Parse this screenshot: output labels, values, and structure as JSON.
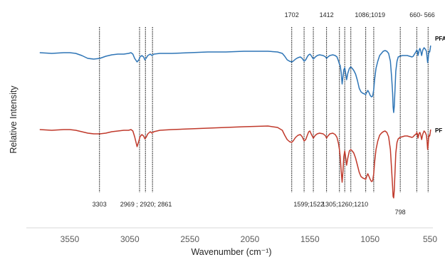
{
  "chart_data": {
    "type": "line",
    "title": "",
    "xlabel": "Wavenumber (cm⁻¹)",
    "ylabel": "Relative Intensity",
    "x_reversed": true,
    "xlim": [
      3800,
      540
    ],
    "x_ticks": [
      "3550",
      "3050",
      "2550",
      "2050",
      "1550",
      "1050",
      "550"
    ],
    "grid": false,
    "series": [
      {
        "name": "PFA",
        "color": "#2e75b6",
        "points": [
          [
            3800,
            74
          ],
          [
            3700,
            75
          ],
          [
            3600,
            74
          ],
          [
            3550,
            74
          ],
          [
            3500,
            75
          ],
          [
            3450,
            78
          ],
          [
            3400,
            82
          ],
          [
            3350,
            83
          ],
          [
            3300,
            82
          ],
          [
            3250,
            79
          ],
          [
            3200,
            77
          ],
          [
            3150,
            76
          ],
          [
            3100,
            76
          ],
          [
            3060,
            75
          ],
          [
            3040,
            74
          ],
          [
            3025,
            76
          ],
          [
            3010,
            82
          ],
          [
            2990,
            87
          ],
          [
            2975,
            84
          ],
          [
            2965,
            80
          ],
          [
            2950,
            78
          ],
          [
            2935,
            80
          ],
          [
            2925,
            84
          ],
          [
            2915,
            82
          ],
          [
            2900,
            78
          ],
          [
            2880,
            76
          ],
          [
            2865,
            78
          ],
          [
            2850,
            76
          ],
          [
            2800,
            75
          ],
          [
            2700,
            75
          ],
          [
            2550,
            74
          ],
          [
            2400,
            73
          ],
          [
            2250,
            73
          ],
          [
            2100,
            72
          ],
          [
            1900,
            72
          ],
          [
            1820,
            73
          ],
          [
            1780,
            75
          ],
          [
            1760,
            79
          ],
          [
            1740,
            84
          ],
          [
            1720,
            86
          ],
          [
            1702,
            87
          ],
          [
            1690,
            86
          ],
          [
            1670,
            83
          ],
          [
            1650,
            81
          ],
          [
            1630,
            80
          ],
          [
            1615,
            82
          ],
          [
            1599,
            86
          ],
          [
            1585,
            84
          ],
          [
            1570,
            79
          ],
          [
            1560,
            77
          ],
          [
            1550,
            76
          ],
          [
            1540,
            78
          ],
          [
            1522,
            83
          ],
          [
            1505,
            80
          ],
          [
            1490,
            78
          ],
          [
            1470,
            77
          ],
          [
            1440,
            78
          ],
          [
            1420,
            80
          ],
          [
            1412,
            82
          ],
          [
            1400,
            80
          ],
          [
            1385,
            78
          ],
          [
            1360,
            77
          ],
          [
            1340,
            78
          ],
          [
            1325,
            80
          ],
          [
            1312,
            86
          ],
          [
            1305,
            90
          ],
          [
            1298,
            92
          ],
          [
            1290,
            102
          ],
          [
            1282,
            118
          ],
          [
            1275,
            108
          ],
          [
            1268,
            98
          ],
          [
            1260,
            95
          ],
          [
            1252,
            104
          ],
          [
            1245,
            112
          ],
          [
            1235,
            103
          ],
          [
            1222,
            96
          ],
          [
            1210,
            94
          ],
          [
            1198,
            96
          ],
          [
            1185,
            99
          ],
          [
            1170,
            104
          ],
          [
            1155,
            113
          ],
          [
            1140,
            124
          ],
          [
            1125,
            129
          ],
          [
            1110,
            131
          ],
          [
            1095,
            132
          ],
          [
            1086,
            133
          ],
          [
            1078,
            130
          ],
          [
            1068,
            127
          ],
          [
            1058,
            130
          ],
          [
            1048,
            134
          ],
          [
            1038,
            136
          ],
          [
            1028,
            135
          ],
          [
            1019,
            126
          ],
          [
            1012,
            112
          ],
          [
            1000,
            96
          ],
          [
            985,
            86
          ],
          [
            970,
            78
          ],
          [
            955,
            75
          ],
          [
            940,
            72
          ],
          [
            925,
            71
          ],
          [
            910,
            72
          ],
          [
            895,
            75
          ],
          [
            880,
            86
          ],
          [
            870,
            108
          ],
          [
            862,
            130
          ],
          [
            858,
            150
          ],
          [
            853,
            158
          ],
          [
            848,
            150
          ],
          [
            842,
            128
          ],
          [
            835,
            100
          ],
          [
            825,
            86
          ],
          [
            815,
            80
          ],
          [
            800,
            79
          ],
          [
            780,
            78
          ],
          [
            760,
            78
          ],
          [
            740,
            78
          ],
          [
            720,
            79
          ],
          [
            700,
            80
          ],
          [
            690,
            79
          ],
          [
            680,
            76
          ],
          [
            672,
            74
          ],
          [
            665,
            72
          ],
          [
            660,
            70
          ],
          [
            655,
            72
          ],
          [
            650,
            78
          ],
          [
            645,
            74
          ],
          [
            640,
            70
          ],
          [
            635,
            68
          ],
          [
            630,
            70
          ],
          [
            625,
            74
          ],
          [
            620,
            78
          ],
          [
            615,
            74
          ],
          [
            610,
            70
          ],
          [
            600,
            67
          ],
          [
            590,
            69
          ],
          [
            580,
            72
          ],
          [
            575,
            80
          ],
          [
            570,
            88
          ],
          [
            566,
            84
          ],
          [
            562,
            76
          ],
          [
            558,
            72
          ],
          [
            553,
            73
          ],
          [
            548,
            68
          ],
          [
            545,
            64
          ]
        ]
      },
      {
        "name": "PF",
        "color": "#c0392b",
        "points": [
          [
            3800,
            182
          ],
          [
            3700,
            183
          ],
          [
            3600,
            182
          ],
          [
            3550,
            182
          ],
          [
            3500,
            183
          ],
          [
            3450,
            185
          ],
          [
            3400,
            187
          ],
          [
            3350,
            188
          ],
          [
            3300,
            188
          ],
          [
            3250,
            187
          ],
          [
            3200,
            185
          ],
          [
            3150,
            184
          ],
          [
            3100,
            183
          ],
          [
            3060,
            183
          ],
          [
            3040,
            182
          ],
          [
            3025,
            184
          ],
          [
            3010,
            192
          ],
          [
            2990,
            206
          ],
          [
            2975,
            198
          ],
          [
            2965,
            192
          ],
          [
            2950,
            189
          ],
          [
            2935,
            191
          ],
          [
            2925,
            195
          ],
          [
            2915,
            193
          ],
          [
            2900,
            188
          ],
          [
            2880,
            185
          ],
          [
            2865,
            187
          ],
          [
            2850,
            185
          ],
          [
            2800,
            183
          ],
          [
            2700,
            182
          ],
          [
            2550,
            181
          ],
          [
            2400,
            180
          ],
          [
            2250,
            179
          ],
          [
            2100,
            178
          ],
          [
            1900,
            177
          ],
          [
            1820,
            179
          ],
          [
            1780,
            183
          ],
          [
            1760,
            190
          ],
          [
            1740,
            196
          ],
          [
            1720,
            199
          ],
          [
            1702,
            200
          ],
          [
            1690,
            198
          ],
          [
            1670,
            193
          ],
          [
            1650,
            190
          ],
          [
            1630,
            189
          ],
          [
            1615,
            192
          ],
          [
            1599,
            198
          ],
          [
            1585,
            196
          ],
          [
            1570,
            189
          ],
          [
            1560,
            185
          ],
          [
            1550,
            184
          ],
          [
            1540,
            188
          ],
          [
            1522,
            194
          ],
          [
            1505,
            190
          ],
          [
            1490,
            188
          ],
          [
            1470,
            187
          ],
          [
            1440,
            188
          ],
          [
            1420,
            191
          ],
          [
            1412,
            194
          ],
          [
            1400,
            191
          ],
          [
            1385,
            188
          ],
          [
            1360,
            187
          ],
          [
            1340,
            189
          ],
          [
            1325,
            193
          ],
          [
            1312,
            202
          ],
          [
            1305,
            210
          ],
          [
            1298,
            220
          ],
          [
            1290,
            240
          ],
          [
            1282,
            256
          ],
          [
            1275,
            240
          ],
          [
            1268,
            220
          ],
          [
            1260,
            212
          ],
          [
            1252,
            222
          ],
          [
            1245,
            232
          ],
          [
            1235,
            222
          ],
          [
            1222,
            212
          ],
          [
            1210,
            210
          ],
          [
            1198,
            212
          ],
          [
            1185,
            215
          ],
          [
            1170,
            222
          ],
          [
            1155,
            232
          ],
          [
            1140,
            242
          ],
          [
            1125,
            248
          ],
          [
            1110,
            250
          ],
          [
            1095,
            251
          ],
          [
            1086,
            252
          ],
          [
            1078,
            248
          ],
          [
            1068,
            244
          ],
          [
            1058,
            248
          ],
          [
            1048,
            252
          ],
          [
            1038,
            255
          ],
          [
            1028,
            254
          ],
          [
            1019,
            244
          ],
          [
            1012,
            228
          ],
          [
            1000,
            210
          ],
          [
            985,
            198
          ],
          [
            970,
            190
          ],
          [
            955,
            187
          ],
          [
            940,
            185
          ],
          [
            925,
            184
          ],
          [
            910,
            186
          ],
          [
            895,
            192
          ],
          [
            880,
            210
          ],
          [
            870,
            238
          ],
          [
            862,
            262
          ],
          [
            858,
            276
          ],
          [
            853,
            278
          ],
          [
            848,
            268
          ],
          [
            842,
            244
          ],
          [
            835,
            215
          ],
          [
            825,
            200
          ],
          [
            815,
            195
          ],
          [
            800,
            193
          ],
          [
            780,
            192
          ],
          [
            760,
            191
          ],
          [
            740,
            191
          ],
          [
            720,
            192
          ],
          [
            700,
            193
          ],
          [
            690,
            192
          ],
          [
            680,
            190
          ],
          [
            672,
            189
          ],
          [
            665,
            188
          ],
          [
            660,
            186
          ],
          [
            655,
            188
          ],
          [
            650,
            194
          ],
          [
            645,
            190
          ],
          [
            640,
            187
          ],
          [
            635,
            186
          ],
          [
            630,
            188
          ],
          [
            625,
            192
          ],
          [
            620,
            196
          ],
          [
            615,
            192
          ],
          [
            610,
            188
          ],
          [
            600,
            184
          ],
          [
            590,
            186
          ],
          [
            580,
            190
          ],
          [
            575,
            198
          ],
          [
            570,
            210
          ],
          [
            566,
            204
          ],
          [
            562,
            194
          ],
          [
            558,
            190
          ],
          [
            553,
            191
          ],
          [
            548,
            186
          ],
          [
            545,
            182
          ]
        ]
      }
    ],
    "reference_lines": [
      3303,
      2969,
      2920,
      2861,
      1702,
      1599,
      1522,
      1412,
      1305,
      1260,
      1210,
      1086,
      1019,
      798,
      660,
      566
    ],
    "annotations": [
      {
        "text": "1702",
        "x": 1702,
        "pos": "top"
      },
      {
        "text": "1412",
        "x": 1412,
        "pos": "top"
      },
      {
        "text": "1086;1019",
        "x": 1050,
        "pos": "top"
      },
      {
        "text": "660- 566",
        "x": 615,
        "pos": "top"
      },
      {
        "text": "3303",
        "x": 3303,
        "pos": "bottom"
      },
      {
        "text": "2969 ; 2920; 2861",
        "x": 2915,
        "pos": "bottom"
      },
      {
        "text": "1599;1522",
        "x": 1560,
        "pos": "bottom"
      },
      {
        "text": "1305;1260;1210",
        "x": 1258,
        "pos": "bottom"
      },
      {
        "text": "798",
        "x": 798,
        "pos": "bottom-low"
      }
    ],
    "series_labels": [
      {
        "text": "PFA",
        "series": 0
      },
      {
        "text": "PF",
        "series": 1
      }
    ]
  }
}
